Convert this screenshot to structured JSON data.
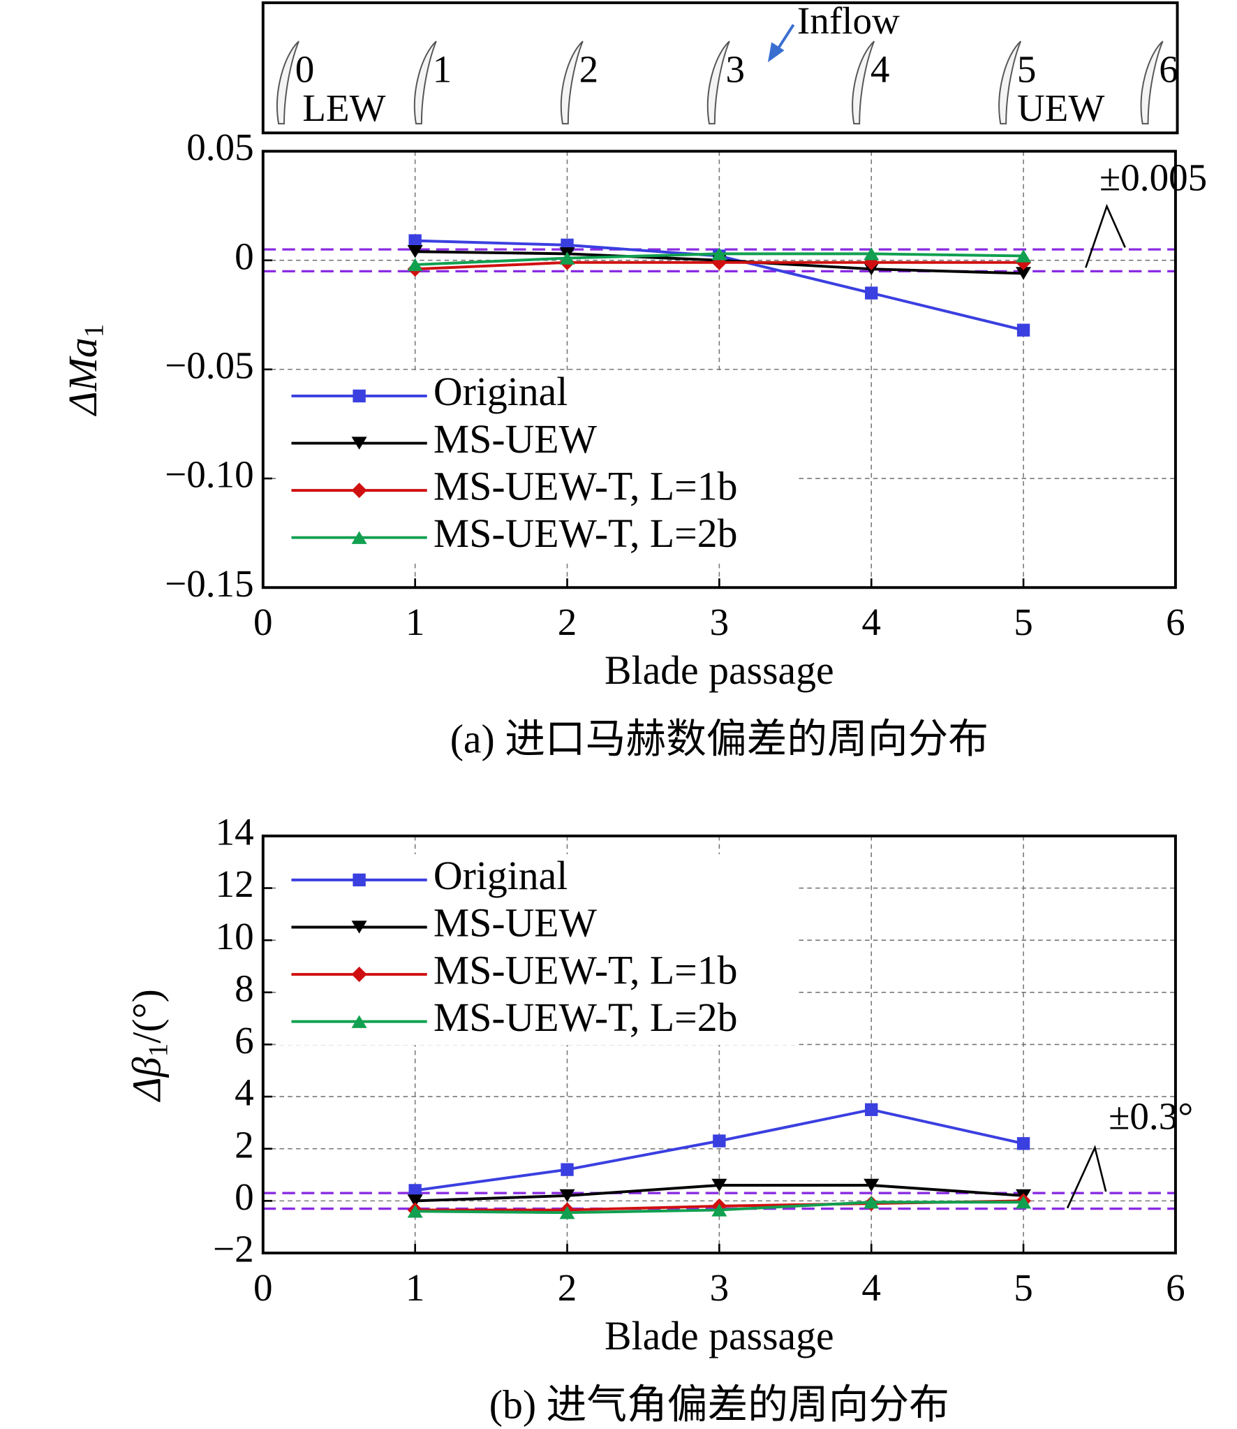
{
  "schematic": {
    "blades": [
      "0",
      "1",
      "2",
      "3",
      "4",
      "5",
      "6"
    ],
    "left_wall": "LEW",
    "right_wall": "UEW",
    "inflow": "Inflow"
  },
  "chart_data": [
    {
      "type": "line",
      "xlabel": "Blade passage",
      "ylabel": "ΔMa",
      "ylabel_subscript": "1",
      "caption": "(a) 进口马赫数偏差的周向分布",
      "annotation": "±0.005",
      "tolerance": 0.005,
      "tolerance_color": "#8a2be2",
      "x": [
        1,
        2,
        3,
        4,
        5
      ],
      "xlim": [
        0,
        6
      ],
      "xticks": [
        0,
        1,
        2,
        3,
        4,
        5,
        6
      ],
      "ylim": [
        -0.15,
        0.05
      ],
      "yticks": [
        {
          "value": -0.15,
          "label": "−0.15"
        },
        {
          "value": -0.1,
          "label": "−0.10"
        },
        {
          "value": -0.05,
          "label": "−0.05"
        },
        0,
        0.05
      ],
      "grid": true,
      "legend": "upper left",
      "series": [
        {
          "name": "Original",
          "color": "#3a3fe0",
          "marker": "square",
          "values": [
            0.009,
            0.007,
            0.002,
            -0.015,
            -0.032
          ]
        },
        {
          "name": "MS-UEW",
          "color": "#000000",
          "marker": "triangle-down",
          "values": [
            0.004,
            0.003,
            0.0,
            -0.004,
            -0.006
          ]
        },
        {
          "name": "MS-UEW-T, L=1b",
          "color": "#d01010",
          "marker": "diamond",
          "values": [
            -0.004,
            -0.001,
            -0.001,
            -0.001,
            -0.001
          ]
        },
        {
          "name": "MS-UEW-T, L=2b",
          "color": "#10a050",
          "marker": "triangle-up",
          "values": [
            -0.002,
            0.001,
            0.003,
            0.003,
            0.002
          ]
        }
      ]
    },
    {
      "type": "line",
      "xlabel": "Blade passage",
      "ylabel": "Δβ",
      "ylabel_subscript": "1",
      "ylabel_suffix": "/(°)",
      "caption": "(b) 进气角偏差的周向分布",
      "annotation": "±0.3°",
      "tolerance": 0.3,
      "tolerance_color": "#8a2be2",
      "x": [
        1,
        2,
        3,
        4,
        5
      ],
      "xlim": [
        0,
        6
      ],
      "xticks": [
        0,
        1,
        2,
        3,
        4,
        5,
        6
      ],
      "ylim": [
        -2,
        14
      ],
      "yticks": [
        {
          "value": -2,
          "label": "−2"
        },
        0,
        2,
        4,
        6,
        8,
        10,
        12,
        14
      ],
      "grid": true,
      "legend": "upper left",
      "series": [
        {
          "name": "Original",
          "color": "#3a3fe0",
          "marker": "square",
          "values": [
            0.4,
            1.2,
            2.3,
            3.5,
            2.2
          ]
        },
        {
          "name": "MS-UEW",
          "color": "#000000",
          "marker": "triangle-down",
          "values": [
            0.0,
            0.2,
            0.6,
            0.6,
            0.2
          ]
        },
        {
          "name": "MS-UEW-T, L=1b",
          "color": "#d01010",
          "marker": "diamond",
          "values": [
            -0.35,
            -0.35,
            -0.2,
            -0.1,
            0.0
          ]
        },
        {
          "name": "MS-UEW-T, L=2b",
          "color": "#10a050",
          "marker": "triangle-up",
          "values": [
            -0.4,
            -0.45,
            -0.35,
            -0.05,
            -0.05
          ]
        }
      ]
    }
  ]
}
